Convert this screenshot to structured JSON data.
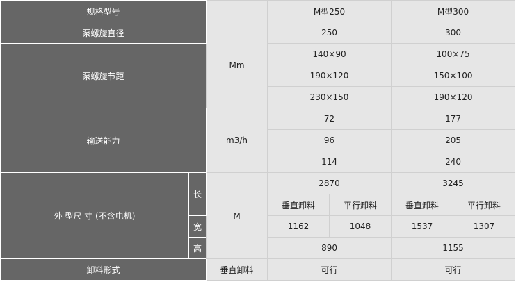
{
  "header": {
    "label": "规格型号",
    "models": [
      "M型250",
      "M型300"
    ]
  },
  "diameter": {
    "label": "泵螺旋直径",
    "unit": "Mm",
    "values": [
      "250",
      "300"
    ]
  },
  "pitch": {
    "label": "泵螺旋节距",
    "rows": [
      [
        "140×90",
        "100×75"
      ],
      [
        "190×120",
        "150×100"
      ],
      [
        "230×150",
        "190×120"
      ]
    ]
  },
  "capacity": {
    "label": "输送能力",
    "unit": "m3/h",
    "rows": [
      [
        "72",
        "177"
      ],
      [
        "96",
        "205"
      ],
      [
        "114",
        "240"
      ]
    ]
  },
  "dimensions": {
    "label": "外 型尺 寸 (不含电机)",
    "unit": "M",
    "length_label": "长",
    "width_label": "宽",
    "height_label": "高",
    "length": [
      "2870",
      "3245"
    ],
    "sub_headers": [
      "垂直卸料",
      "平行卸料",
      "垂直卸料",
      "平行卸料"
    ],
    "width": [
      "1162",
      "1048",
      "1537",
      "1307"
    ],
    "height": [
      "890",
      "1155"
    ]
  },
  "discharge": {
    "label": "卸料形式",
    "type": "垂直卸料",
    "values": [
      "可行",
      "可行"
    ]
  }
}
